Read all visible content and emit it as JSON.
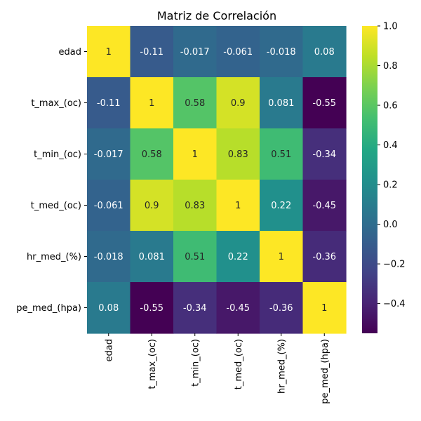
{
  "chart_data": {
    "type": "heatmap",
    "title": "Matriz de Correlación",
    "x_labels": [
      "edad",
      "t_max_(oc)",
      "t_min_(oc)",
      "t_med_(oc)",
      "hr_med_(%)",
      "pe_med_(hpa)"
    ],
    "y_labels": [
      "edad",
      "t_max_(oc)",
      "t_min_(oc)",
      "t_med_(oc)",
      "hr_med_(%)",
      "pe_med_(hpa)"
    ],
    "values": [
      [
        1,
        -0.11,
        -0.017,
        -0.061,
        -0.018,
        0.08
      ],
      [
        -0.11,
        1,
        0.58,
        0.9,
        0.081,
        -0.55
      ],
      [
        -0.017,
        0.58,
        1,
        0.83,
        0.51,
        -0.34
      ],
      [
        -0.061,
        0.9,
        0.83,
        1,
        0.22,
        -0.45
      ],
      [
        -0.018,
        0.081,
        0.51,
        0.22,
        1,
        -0.36
      ],
      [
        0.08,
        -0.55,
        -0.34,
        -0.45,
        -0.36,
        1
      ]
    ],
    "annotations": [
      [
        "1",
        "-0.11",
        "-0.017",
        "-0.061",
        "-0.018",
        "0.08"
      ],
      [
        "-0.11",
        "1",
        "0.58",
        "0.9",
        "0.081",
        "-0.55"
      ],
      [
        "-0.017",
        "0.58",
        "1",
        "0.83",
        "0.51",
        "-0.34"
      ],
      [
        "-0.061",
        "0.9",
        "0.83",
        "1",
        "0.22",
        "-0.45"
      ],
      [
        "-0.018",
        "0.081",
        "0.51",
        "0.22",
        "1",
        "-0.36"
      ],
      [
        "0.08",
        "-0.55",
        "-0.34",
        "-0.45",
        "-0.36",
        "1"
      ]
    ],
    "colormap": "viridis",
    "vmin": -0.55,
    "vmax": 1,
    "colorbar_ticks": [
      1.0,
      0.8,
      0.6,
      0.4,
      0.2,
      0.0,
      -0.2,
      -0.4
    ],
    "colorbar_tick_labels": [
      "1.0",
      "0.8",
      "0.6",
      "0.4",
      "0.2",
      "0.0",
      "−0.2",
      "−0.4"
    ],
    "colorbar_placement": "right"
  }
}
